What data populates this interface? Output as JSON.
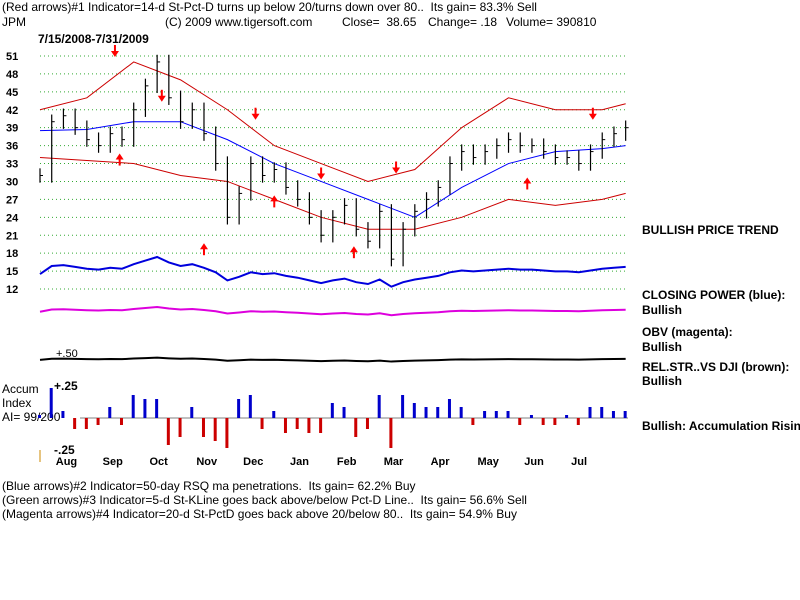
{
  "header": {
    "line1": "(Red arrows)#1 Indicator=14-d St-Pct-D turns up below 20/turns down over 80..  Its gain= 83.3% Sell",
    "ticker": "JPM",
    "copyright": "(C) 2009 www.tigersoft.com",
    "close": "Close=  38.65",
    "change": "Change= .18",
    "volume": "Volume= 390810",
    "date_range": "7/15/2008-7/31/2009"
  },
  "side": {
    "price_trend": "BULLISH PRICE TREND",
    "closing_power_label": "CLOSING POWER (blue):",
    "closing_power_value": "Bullish",
    "obv_label": "OBV (magenta):",
    "obv_value": "Bullish",
    "relstr_label": "REL.STR..VS DJI (brown):",
    "relstr_value": "Bullish",
    "accum_status": "Bullish: Accumulation Rising"
  },
  "accum": {
    "title1": "Accum",
    "title2": "Index",
    "ai": "AI= 99/200",
    "upper": "+.25",
    "lower": "-.25",
    "mid_label": "+.50"
  },
  "footer": {
    "line2": "(Blue arrows)#2 Indicator=50-day RSQ ma penetrations.  Its gain= 62.2% Buy",
    "line3": "(Green arrows)#3 Indicator=5-d St-KLine goes back above/below Pct-D Line..  Its gain= 56.6% Sell",
    "line4": "(Magenta arrows)#4 Indicator=20-d St-PctD goes back above 20/below 80..  Its gain= 54.9% Buy"
  },
  "colors": {
    "price": "#000000",
    "ma_blue": "#0000ff",
    "band_red": "#cc0000",
    "closing_power": "#0000dd",
    "obv": "#dd00dd",
    "relstr": "#000000",
    "accum_pos": "#0000cc",
    "accum_neg": "#cc0000",
    "grid": "#33aa33",
    "arrow": "#ff0000"
  },
  "chart_data": {
    "type": "line",
    "y_ticks": [
      51,
      48,
      45,
      42,
      39,
      36,
      33,
      30,
      27,
      24,
      21,
      18,
      15,
      12
    ],
    "ylim": [
      10.5,
      52.5
    ],
    "x_ticks": [
      "Aug",
      "Sep",
      "Oct",
      "Nov",
      "Dec",
      "Jan",
      "Feb",
      "Mar",
      "Apr",
      "May",
      "Jun",
      "Jul"
    ],
    "x_tick_months": [
      0.55,
      1.55,
      2.55,
      3.55,
      4.55,
      5.55,
      6.55,
      7.55,
      8.55,
      9.55,
      10.55,
      11.55
    ],
    "xlim_months": [
      0,
      12.55
    ],
    "grid": true,
    "series": [
      {
        "kind": "close",
        "x_months": [
          0,
          0.25,
          0.5,
          0.75,
          1.0,
          1.25,
          1.5,
          1.75,
          2.0,
          2.25,
          2.5,
          2.75,
          3.0,
          3.25,
          3.5,
          3.75,
          4.0,
          4.25,
          4.5,
          4.75,
          5.0,
          5.25,
          5.5,
          5.75,
          6.0,
          6.25,
          6.5,
          6.75,
          7.0,
          7.25,
          7.5,
          7.75,
          8.0,
          8.25,
          8.5,
          8.75,
          9.0,
          9.25,
          9.5,
          9.75,
          10.0,
          10.25,
          10.5,
          10.75,
          11.0,
          11.25,
          11.5,
          11.75,
          12.0,
          12.25,
          12.5
        ],
        "values": [
          31,
          40,
          41,
          39,
          37,
          36,
          38,
          37,
          42,
          46,
          50,
          44,
          40,
          42,
          38,
          33,
          24,
          28,
          33,
          31,
          32,
          29,
          27,
          24,
          21,
          24,
          26,
          22,
          20,
          25,
          17,
          22,
          25,
          27,
          29,
          33,
          35,
          34,
          35,
          36,
          37,
          36,
          36,
          35,
          34,
          34,
          33,
          35,
          37,
          38,
          39
        ]
      },
      {
        "kind": "ma",
        "x_months": [
          0,
          1,
          2,
          3,
          4,
          5,
          6,
          7,
          8,
          9,
          10,
          11,
          12,
          12.5
        ],
        "values": [
          38.5,
          38.7,
          40,
          40,
          37,
          33,
          30,
          27,
          24,
          29,
          33,
          35,
          35.5,
          36
        ]
      },
      {
        "kind": "band_upper",
        "x_months": [
          0,
          1,
          2,
          3,
          4,
          5,
          6,
          7,
          8,
          9,
          10,
          11,
          12,
          12.5
        ],
        "values": [
          42,
          44,
          50,
          47,
          42,
          36,
          33,
          30,
          32,
          39,
          44,
          42,
          42,
          43
        ]
      },
      {
        "kind": "band_lower",
        "x_months": [
          0,
          1,
          2,
          3,
          4,
          5,
          6,
          7,
          8,
          9,
          10,
          11,
          12,
          12.5
        ],
        "values": [
          34,
          33.5,
          33,
          31,
          30,
          27,
          24,
          22,
          22,
          24,
          27,
          26,
          27,
          28
        ]
      }
    ],
    "red_arrows": [
      {
        "x_months": 1.6,
        "value": 51.5,
        "dir": "down"
      },
      {
        "x_months": 2.6,
        "value": 44,
        "dir": "down"
      },
      {
        "x_months": 4.6,
        "value": 41,
        "dir": "down"
      },
      {
        "x_months": 6.0,
        "value": 31,
        "dir": "down"
      },
      {
        "x_months": 7.6,
        "value": 32,
        "dir": "down"
      },
      {
        "x_months": 11.8,
        "value": 41,
        "dir": "down"
      },
      {
        "x_months": 1.7,
        "value": 34,
        "dir": "up"
      },
      {
        "x_months": 3.5,
        "value": 19,
        "dir": "up"
      },
      {
        "x_months": 5.0,
        "value": 27,
        "dir": "up"
      },
      {
        "x_months": 6.7,
        "value": 18.5,
        "dir": "up"
      },
      {
        "x_months": 10.4,
        "value": 30,
        "dir": "up"
      }
    ]
  }
}
